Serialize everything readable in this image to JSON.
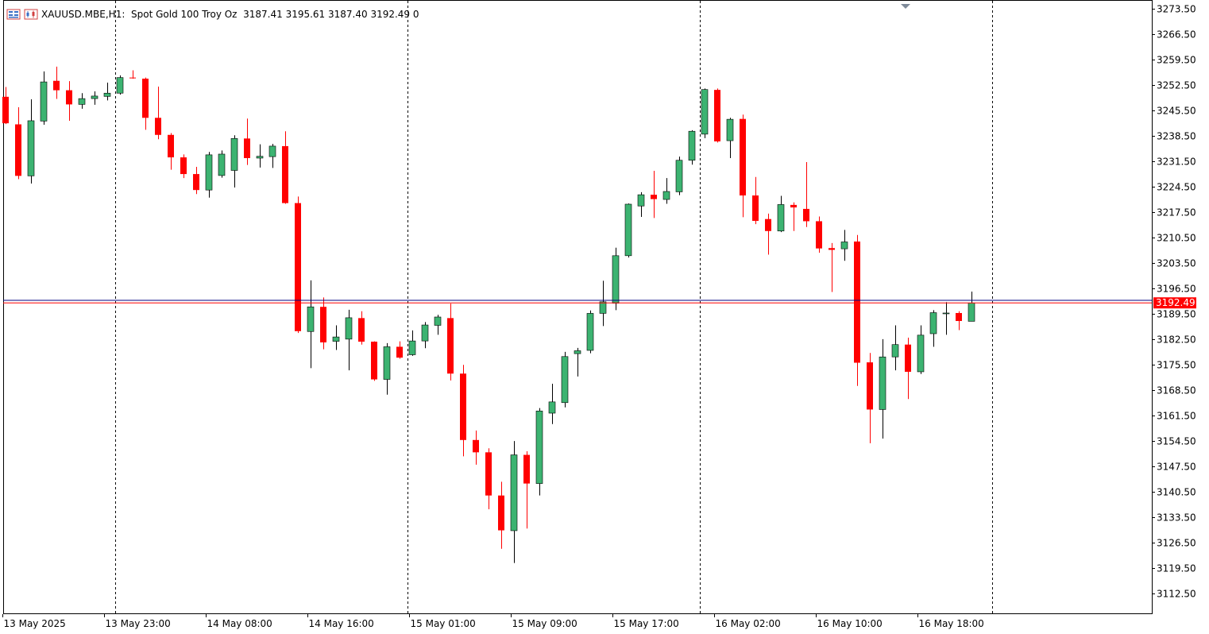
{
  "header": {
    "symbol": "XAUUSD.MBE",
    "timeframe": "H1",
    "description": "Spot Gold 100 Troy Oz",
    "ohlc": "3187.41 3195.61 3187.40 3192.49",
    "volume": "0",
    "icons": [
      "window-list-icon",
      "chart-type-icon"
    ]
  },
  "price_label": {
    "value": "3192.49",
    "color": "#ff0000"
  },
  "colors": {
    "bull": "#3cb371",
    "bear": "#ff0000",
    "background": "#ffffff",
    "axis": "#000000",
    "grid_separator": "#000000",
    "bid_line": "#ff0000",
    "ask_line": "#000080"
  },
  "chart_data": {
    "type": "candlestick",
    "symbol": "XAUUSD.MBE",
    "timeframe": "H1",
    "y_ticks": [
      "3273.50",
      "3266.50",
      "3259.50",
      "3252.50",
      "3245.50",
      "3238.50",
      "3231.50",
      "3224.50",
      "3217.50",
      "3210.50",
      "3203.50",
      "3196.50",
      "3189.50",
      "3182.50",
      "3175.50",
      "3168.50",
      "3161.50",
      "3154.50",
      "3147.50",
      "3140.50",
      "3133.50",
      "3126.50",
      "3119.50",
      "3112.50"
    ],
    "ylim": [
      3106.7,
      3275.1
    ],
    "x_labels": [
      {
        "index": 0,
        "text": "13 May 2025"
      },
      {
        "index": 8,
        "text": "13 May 23:00"
      },
      {
        "index": 16,
        "text": "14 May 08:00"
      },
      {
        "index": 24,
        "text": "14 May 16:00"
      },
      {
        "index": 32,
        "text": "15 May 01:00"
      },
      {
        "index": 40,
        "text": "15 May 09:00"
      },
      {
        "index": 48,
        "text": "15 May 17:00"
      },
      {
        "index": 56,
        "text": "16 May 02:00"
      },
      {
        "index": 64,
        "text": "16 May 10:00"
      },
      {
        "index": 72,
        "text": "16 May 18:00"
      }
    ],
    "day_separators": [
      8.65,
      31.65,
      54.65,
      77.65
    ],
    "bid": 3192.49,
    "ask": 3193.2,
    "candles": [
      {
        "o": 3249.3,
        "h": 3252.0,
        "l": 3241.8,
        "c": 3242.0
      },
      {
        "o": 3241.7,
        "h": 3246.4,
        "l": 3226.6,
        "c": 3227.5
      },
      {
        "o": 3227.5,
        "h": 3248.6,
        "l": 3225.4,
        "c": 3242.7
      },
      {
        "o": 3242.6,
        "h": 3256.3,
        "l": 3241.6,
        "c": 3253.4
      },
      {
        "o": 3253.7,
        "h": 3257.6,
        "l": 3248.7,
        "c": 3251.1
      },
      {
        "o": 3251.1,
        "h": 3253.6,
        "l": 3242.7,
        "c": 3247.2
      },
      {
        "o": 3247.2,
        "h": 3250.3,
        "l": 3246.0,
        "c": 3248.8
      },
      {
        "o": 3248.8,
        "h": 3250.8,
        "l": 3247.1,
        "c": 3249.5
      },
      {
        "o": 3249.4,
        "h": 3253.2,
        "l": 3248.3,
        "c": 3250.3
      },
      {
        "o": 3250.3,
        "h": 3255.2,
        "l": 3249.9,
        "c": 3254.6
      },
      {
        "o": 3254.6,
        "h": 3256.6,
        "l": 3254.3,
        "c": 3254.5
      },
      {
        "o": 3254.3,
        "h": 3254.6,
        "l": 3240.2,
        "c": 3243.5
      },
      {
        "o": 3243.5,
        "h": 3252.1,
        "l": 3237.6,
        "c": 3238.8
      },
      {
        "o": 3238.8,
        "h": 3239.3,
        "l": 3229.2,
        "c": 3232.6
      },
      {
        "o": 3232.6,
        "h": 3233.4,
        "l": 3226.9,
        "c": 3228.0
      },
      {
        "o": 3228.0,
        "h": 3230.0,
        "l": 3222.5,
        "c": 3223.6
      },
      {
        "o": 3223.6,
        "h": 3234.1,
        "l": 3221.5,
        "c": 3233.3
      },
      {
        "o": 3227.6,
        "h": 3234.5,
        "l": 3227.0,
        "c": 3233.5
      },
      {
        "o": 3229.0,
        "h": 3238.7,
        "l": 3224.3,
        "c": 3237.8
      },
      {
        "o": 3237.8,
        "h": 3243.3,
        "l": 3230.5,
        "c": 3232.4
      },
      {
        "o": 3232.4,
        "h": 3236.2,
        "l": 3229.8,
        "c": 3232.9
      },
      {
        "o": 3232.8,
        "h": 3236.3,
        "l": 3229.7,
        "c": 3235.7
      },
      {
        "o": 3235.7,
        "h": 3239.8,
        "l": 3219.8,
        "c": 3220.0
      },
      {
        "o": 3220.0,
        "h": 3221.8,
        "l": 3184.2,
        "c": 3184.7
      },
      {
        "o": 3184.6,
        "h": 3198.7,
        "l": 3174.5,
        "c": 3191.4
      },
      {
        "o": 3191.4,
        "h": 3194.0,
        "l": 3179.7,
        "c": 3181.6
      },
      {
        "o": 3181.9,
        "h": 3186.3,
        "l": 3179.5,
        "c": 3183.1
      },
      {
        "o": 3182.5,
        "h": 3190.6,
        "l": 3173.9,
        "c": 3188.4
      },
      {
        "o": 3188.3,
        "h": 3190.2,
        "l": 3181.0,
        "c": 3181.8
      },
      {
        "o": 3181.8,
        "h": 3181.9,
        "l": 3171.0,
        "c": 3171.4
      },
      {
        "o": 3171.4,
        "h": 3181.4,
        "l": 3167.2,
        "c": 3180.4
      },
      {
        "o": 3180.4,
        "h": 3181.9,
        "l": 3177.1,
        "c": 3177.4
      },
      {
        "o": 3178.2,
        "h": 3184.9,
        "l": 3177.9,
        "c": 3182.0
      },
      {
        "o": 3182.0,
        "h": 3187.2,
        "l": 3180.0,
        "c": 3186.4
      },
      {
        "o": 3186.3,
        "h": 3189.2,
        "l": 3183.7,
        "c": 3188.6
      },
      {
        "o": 3188.3,
        "h": 3192.3,
        "l": 3171.1,
        "c": 3173.0
      },
      {
        "o": 3173.0,
        "h": 3175.4,
        "l": 3150.2,
        "c": 3154.7
      },
      {
        "o": 3154.7,
        "h": 3157.3,
        "l": 3147.9,
        "c": 3151.3
      },
      {
        "o": 3151.3,
        "h": 3152.4,
        "l": 3135.6,
        "c": 3139.4
      },
      {
        "o": 3139.4,
        "h": 3143.2,
        "l": 3124.7,
        "c": 3129.8
      },
      {
        "o": 3129.7,
        "h": 3154.4,
        "l": 3120.8,
        "c": 3150.6
      },
      {
        "o": 3150.6,
        "h": 3151.6,
        "l": 3130.3,
        "c": 3142.7
      },
      {
        "o": 3142.7,
        "h": 3163.5,
        "l": 3139.4,
        "c": 3162.7
      },
      {
        "o": 3162.1,
        "h": 3170.2,
        "l": 3159.1,
        "c": 3165.2
      },
      {
        "o": 3165.0,
        "h": 3179.0,
        "l": 3163.7,
        "c": 3177.7
      },
      {
        "o": 3178.5,
        "h": 3180.1,
        "l": 3172.2,
        "c": 3179.3
      },
      {
        "o": 3179.4,
        "h": 3190.4,
        "l": 3178.6,
        "c": 3189.6
      },
      {
        "o": 3189.6,
        "h": 3198.6,
        "l": 3186.1,
        "c": 3192.8
      },
      {
        "o": 3192.4,
        "h": 3207.7,
        "l": 3190.5,
        "c": 3205.5
      },
      {
        "o": 3205.5,
        "h": 3219.9,
        "l": 3205.0,
        "c": 3219.7
      },
      {
        "o": 3219.2,
        "h": 3223.0,
        "l": 3216.2,
        "c": 3222.3
      },
      {
        "o": 3222.3,
        "h": 3228.9,
        "l": 3215.9,
        "c": 3221.1
      },
      {
        "o": 3221.0,
        "h": 3226.9,
        "l": 3219.8,
        "c": 3223.2
      },
      {
        "o": 3223.1,
        "h": 3232.8,
        "l": 3222.2,
        "c": 3231.8
      },
      {
        "o": 3231.8,
        "h": 3240.1,
        "l": 3230.6,
        "c": 3239.8
      },
      {
        "o": 3239.0,
        "h": 3251.6,
        "l": 3237.9,
        "c": 3251.3
      },
      {
        "o": 3251.2,
        "h": 3251.6,
        "l": 3236.7,
        "c": 3237.0
      },
      {
        "o": 3237.2,
        "h": 3243.5,
        "l": 3232.4,
        "c": 3243.1
      },
      {
        "o": 3243.2,
        "h": 3244.4,
        "l": 3216.1,
        "c": 3222.1
      },
      {
        "o": 3222.1,
        "h": 3227.2,
        "l": 3214.2,
        "c": 3215.1
      },
      {
        "o": 3215.6,
        "h": 3217.1,
        "l": 3205.8,
        "c": 3212.3
      },
      {
        "o": 3212.3,
        "h": 3222.0,
        "l": 3212.0,
        "c": 3219.6
      },
      {
        "o": 3219.5,
        "h": 3220.2,
        "l": 3212.3,
        "c": 3218.8
      },
      {
        "o": 3218.4,
        "h": 3231.3,
        "l": 3213.4,
        "c": 3215.0
      },
      {
        "o": 3215.0,
        "h": 3216.3,
        "l": 3206.3,
        "c": 3207.5
      },
      {
        "o": 3207.6,
        "h": 3209.0,
        "l": 3195.5,
        "c": 3207.1
      },
      {
        "o": 3207.4,
        "h": 3212.6,
        "l": 3204.1,
        "c": 3209.3
      },
      {
        "o": 3209.4,
        "h": 3211.2,
        "l": 3169.6,
        "c": 3176.0
      },
      {
        "o": 3176.1,
        "h": 3178.7,
        "l": 3153.8,
        "c": 3163.1
      },
      {
        "o": 3163.1,
        "h": 3182.5,
        "l": 3155.1,
        "c": 3177.6
      },
      {
        "o": 3177.6,
        "h": 3186.3,
        "l": 3173.9,
        "c": 3181.0
      },
      {
        "o": 3181.0,
        "h": 3182.9,
        "l": 3166.0,
        "c": 3173.5
      },
      {
        "o": 3173.5,
        "h": 3186.3,
        "l": 3172.9,
        "c": 3183.6
      },
      {
        "o": 3184.0,
        "h": 3190.5,
        "l": 3180.4,
        "c": 3189.8
      },
      {
        "o": 3189.7,
        "h": 3192.7,
        "l": 3183.7,
        "c": 3189.7
      },
      {
        "o": 3189.7,
        "h": 3190.2,
        "l": 3185.0,
        "c": 3187.5
      },
      {
        "o": 3187.41,
        "h": 3195.61,
        "l": 3187.4,
        "c": 3192.49
      }
    ]
  }
}
